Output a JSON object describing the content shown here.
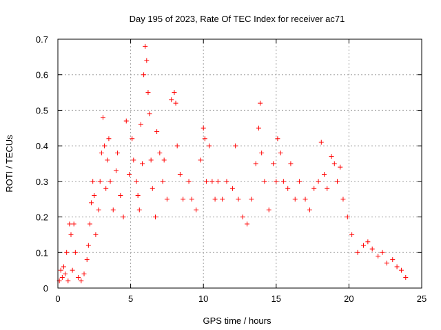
{
  "chart_data": {
    "type": "scatter",
    "title": "Day 195 of 2023, Rate Of TEC Index for receiver ac71",
    "xlabel": "GPS time / hours",
    "ylabel": "ROTI / TECUs",
    "xlim": [
      0,
      25
    ],
    "ylim": [
      0,
      0.7
    ],
    "xticks": [
      "0",
      "5",
      "10",
      "15",
      "20",
      "25"
    ],
    "xtick_values": [
      0,
      5,
      10,
      15,
      20,
      25
    ],
    "yticks": [
      "0",
      "0.1",
      "0.2",
      "0.3",
      "0.4",
      "0.5",
      "0.6",
      "0.7"
    ],
    "ytick_values": [
      0,
      0.1,
      0.2,
      0.3,
      0.4,
      0.5,
      0.6,
      0.7
    ],
    "grid": true,
    "marker": "plus",
    "color": "#ff0000",
    "series": [
      {
        "points": [
          [
            0.1,
            0.02
          ],
          [
            0.2,
            0.05
          ],
          [
            0.3,
            0.03
          ],
          [
            0.4,
            0.06
          ],
          [
            0.5,
            0.04
          ],
          [
            0.6,
            0.1
          ],
          [
            0.7,
            0.02
          ],
          [
            0.8,
            0.18
          ],
          [
            0.9,
            0.15
          ],
          [
            1.0,
            0.05
          ],
          [
            1.1,
            0.18
          ],
          [
            1.2,
            0.1
          ],
          [
            1.4,
            0.03
          ],
          [
            1.6,
            0.02
          ],
          [
            1.8,
            0.04
          ],
          [
            2.0,
            0.08
          ],
          [
            2.1,
            0.12
          ],
          [
            2.2,
            0.18
          ],
          [
            2.3,
            0.24
          ],
          [
            2.4,
            0.3
          ],
          [
            2.5,
            0.26
          ],
          [
            2.6,
            0.15
          ],
          [
            2.8,
            0.22
          ],
          [
            2.9,
            0.3
          ],
          [
            3.0,
            0.38
          ],
          [
            3.1,
            0.48
          ],
          [
            3.2,
            0.4
          ],
          [
            3.3,
            0.28
          ],
          [
            3.4,
            0.36
          ],
          [
            3.5,
            0.42
          ],
          [
            3.6,
            0.3
          ],
          [
            3.8,
            0.22
          ],
          [
            4.0,
            0.33
          ],
          [
            4.1,
            0.38
          ],
          [
            4.3,
            0.26
          ],
          [
            4.5,
            0.2
          ],
          [
            4.7,
            0.47
          ],
          [
            4.9,
            0.32
          ],
          [
            5.1,
            0.42
          ],
          [
            5.2,
            0.36
          ],
          [
            5.4,
            0.3
          ],
          [
            5.5,
            0.26
          ],
          [
            5.6,
            0.22
          ],
          [
            5.7,
            0.46
          ],
          [
            5.8,
            0.35
          ],
          [
            5.9,
            0.6
          ],
          [
            6.0,
            0.68
          ],
          [
            6.1,
            0.64
          ],
          [
            6.2,
            0.55
          ],
          [
            6.3,
            0.49
          ],
          [
            6.4,
            0.36
          ],
          [
            6.5,
            0.28
          ],
          [
            6.7,
            0.2
          ],
          [
            6.8,
            0.44
          ],
          [
            7.0,
            0.38
          ],
          [
            7.2,
            0.3
          ],
          [
            7.3,
            0.36
          ],
          [
            7.5,
            0.25
          ],
          [
            7.8,
            0.53
          ],
          [
            8.0,
            0.55
          ],
          [
            8.1,
            0.52
          ],
          [
            8.2,
            0.4
          ],
          [
            8.4,
            0.32
          ],
          [
            8.6,
            0.25
          ],
          [
            9.0,
            0.3
          ],
          [
            9.2,
            0.25
          ],
          [
            9.5,
            0.22
          ],
          [
            9.8,
            0.36
          ],
          [
            10.0,
            0.45
          ],
          [
            10.1,
            0.42
          ],
          [
            10.2,
            0.3
          ],
          [
            10.4,
            0.4
          ],
          [
            10.6,
            0.3
          ],
          [
            10.8,
            0.25
          ],
          [
            11.0,
            0.3
          ],
          [
            11.3,
            0.25
          ],
          [
            11.6,
            0.3
          ],
          [
            12.0,
            0.28
          ],
          [
            12.2,
            0.4
          ],
          [
            12.4,
            0.25
          ],
          [
            12.7,
            0.2
          ],
          [
            13.0,
            0.18
          ],
          [
            13.3,
            0.25
          ],
          [
            13.6,
            0.35
          ],
          [
            13.8,
            0.45
          ],
          [
            13.9,
            0.52
          ],
          [
            14.0,
            0.38
          ],
          [
            14.2,
            0.3
          ],
          [
            14.5,
            0.22
          ],
          [
            14.8,
            0.35
          ],
          [
            15.0,
            0.3
          ],
          [
            15.1,
            0.42
          ],
          [
            15.3,
            0.38
          ],
          [
            15.5,
            0.3
          ],
          [
            15.8,
            0.28
          ],
          [
            16.0,
            0.35
          ],
          [
            16.3,
            0.25
          ],
          [
            16.6,
            0.3
          ],
          [
            17.0,
            0.25
          ],
          [
            17.3,
            0.22
          ],
          [
            17.6,
            0.28
          ],
          [
            17.9,
            0.3
          ],
          [
            18.1,
            0.41
          ],
          [
            18.3,
            0.32
          ],
          [
            18.5,
            0.28
          ],
          [
            18.8,
            0.37
          ],
          [
            19.0,
            0.35
          ],
          [
            19.2,
            0.3
          ],
          [
            19.4,
            0.34
          ],
          [
            19.6,
            0.25
          ],
          [
            19.9,
            0.2
          ],
          [
            20.2,
            0.15
          ],
          [
            20.6,
            0.1
          ],
          [
            21.0,
            0.12
          ],
          [
            21.3,
            0.13
          ],
          [
            21.6,
            0.11
          ],
          [
            22.0,
            0.09
          ],
          [
            22.3,
            0.1
          ],
          [
            22.6,
            0.07
          ],
          [
            23.0,
            0.08
          ],
          [
            23.3,
            0.06
          ],
          [
            23.6,
            0.05
          ],
          [
            23.9,
            0.03
          ]
        ]
      }
    ]
  }
}
